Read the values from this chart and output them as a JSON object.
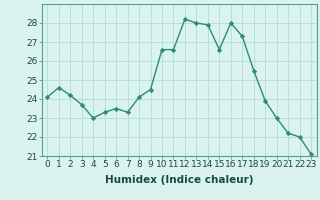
{
  "x": [
    0,
    1,
    2,
    3,
    4,
    5,
    6,
    7,
    8,
    9,
    10,
    11,
    12,
    13,
    14,
    15,
    16,
    17,
    18,
    19,
    20,
    21,
    22,
    23
  ],
  "y": [
    24.1,
    24.6,
    24.2,
    23.7,
    23.0,
    23.3,
    23.5,
    23.3,
    24.1,
    24.5,
    26.6,
    26.6,
    28.2,
    28.0,
    27.9,
    26.6,
    28.0,
    27.3,
    25.5,
    23.9,
    23.0,
    22.2,
    22.0,
    21.1
  ],
  "line_color": "#2e8b78",
  "marker": "D",
  "marker_size": 2.2,
  "bg_color": "#daf3ef",
  "grid_color": "#b2ddd8",
  "xlabel": "Humidex (Indice chaleur)",
  "ylim": [
    21,
    29
  ],
  "xlim": [
    -0.5,
    23.5
  ],
  "yticks": [
    21,
    22,
    23,
    24,
    25,
    26,
    27,
    28
  ],
  "xticks": [
    0,
    1,
    2,
    3,
    4,
    5,
    6,
    7,
    8,
    9,
    10,
    11,
    12,
    13,
    14,
    15,
    16,
    17,
    18,
    19,
    20,
    21,
    22,
    23
  ],
  "xtick_labels": [
    "0",
    "1",
    "2",
    "3",
    "4",
    "5",
    "6",
    "7",
    "8",
    "9",
    "10",
    "11",
    "12",
    "13",
    "14",
    "15",
    "16",
    "17",
    "18",
    "19",
    "20",
    "21",
    "22",
    "23"
  ],
  "tick_fontsize": 6.5,
  "xlabel_fontsize": 7.5,
  "label_color": "#1a4a44",
  "spine_color": "#5a9a90",
  "linewidth": 1.0
}
